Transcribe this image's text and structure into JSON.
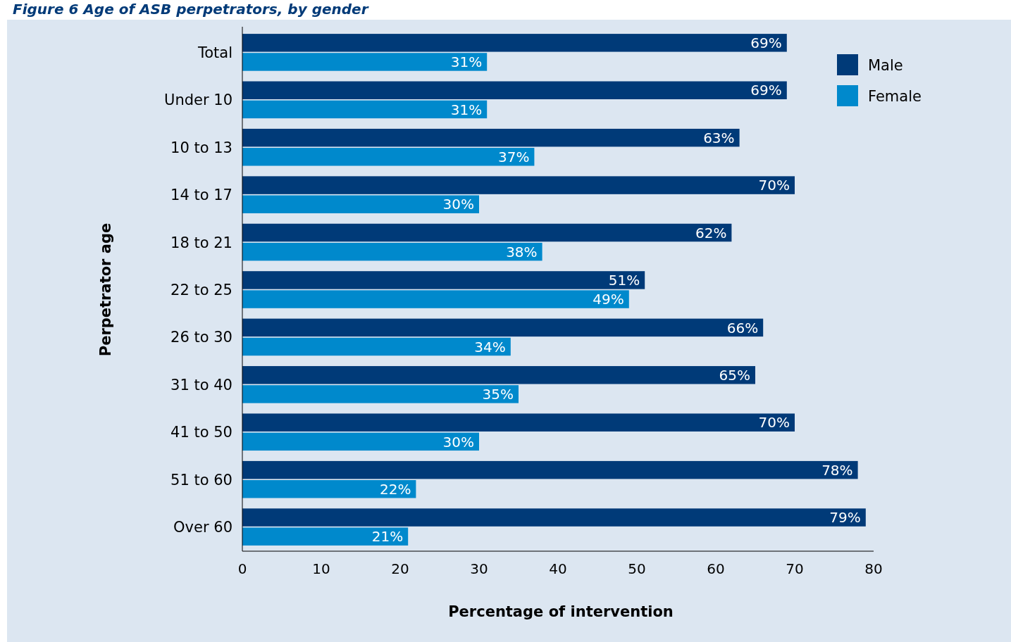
{
  "chart_data": {
    "type": "bar",
    "orientation": "horizontal",
    "title": "Figure 6   Age of ASB perpetrators, by gender",
    "xlabel": "Percentage of intervention",
    "ylabel": "Perpetrator age",
    "categories": [
      "Total",
      "Under 10",
      "10 to 13",
      "14 to 17",
      "18 to 21",
      "22 to 25",
      "26 to 30",
      "31 to 40",
      "41 to 50",
      "51 to 60",
      "Over 60"
    ],
    "series": [
      {
        "name": "Male",
        "color": "#003a78",
        "values": [
          69,
          69,
          63,
          70,
          62,
          51,
          66,
          65,
          70,
          78,
          79
        ],
        "value_labels": [
          "69%",
          "69%",
          "63%",
          "70%",
          "62%",
          "51%",
          "66%",
          "65%",
          "70%",
          "78%",
          "79%"
        ]
      },
      {
        "name": "Female",
        "color": "#0089cc",
        "values": [
          31,
          31,
          37,
          30,
          38,
          49,
          34,
          35,
          30,
          22,
          21
        ],
        "value_labels": [
          "31%",
          "31%",
          "37%",
          "30%",
          "38%",
          "49%",
          "34%",
          "35%",
          "30%",
          "22%",
          "21%"
        ]
      }
    ],
    "xlim": [
      0,
      80
    ],
    "xticks": [
      0,
      10,
      20,
      30,
      40,
      50,
      60,
      70,
      80
    ],
    "grid": false,
    "legend": "top right"
  }
}
